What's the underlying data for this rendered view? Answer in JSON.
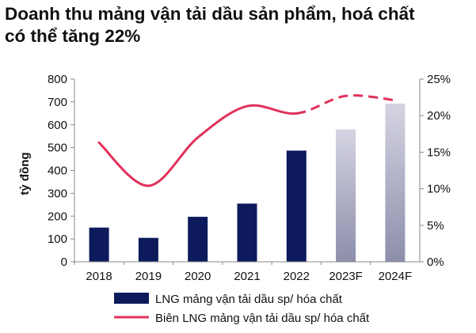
{
  "headline": {
    "line1": "Doanh thu mảng vận tải dầu sản phẩm, hoá chất",
    "line2": "có thể tăng 22%"
  },
  "chart_data": {
    "type": "bar",
    "categories": [
      "2018",
      "2019",
      "2020",
      "2021",
      "2022",
      "2023F",
      "2024F"
    ],
    "series": [
      {
        "name": "LNG mảng vận tải dầu sp/ hóa chất",
        "type": "bar",
        "axis": "left",
        "values": [
          150,
          105,
          197,
          255,
          487,
          580,
          693
        ],
        "color": "#0d1b5c",
        "forecast_color": "#9a9bb5"
      },
      {
        "name": "Biên LNG mảng vận tải dầu sp/ hóa chất",
        "type": "line",
        "axis": "right",
        "values": [
          16.3,
          10.4,
          17.0,
          21.3,
          20.3,
          22.7,
          22.1
        ],
        "color": "#e0315a",
        "forecast_dashed": true
      }
    ],
    "forecast_categories": [
      "2023F",
      "2024F"
    ],
    "ylabel": "tỷ đồng",
    "ylim": [
      0,
      800
    ],
    "yticks": [
      "0",
      "100",
      "200",
      "300",
      "400",
      "500",
      "600",
      "700",
      "800"
    ],
    "y2lim": [
      0,
      25
    ],
    "y2ticks": [
      "0%",
      "5%",
      "10%",
      "15%",
      "20%",
      "25%"
    ],
    "grid": false,
    "legend_position": "bottom"
  }
}
